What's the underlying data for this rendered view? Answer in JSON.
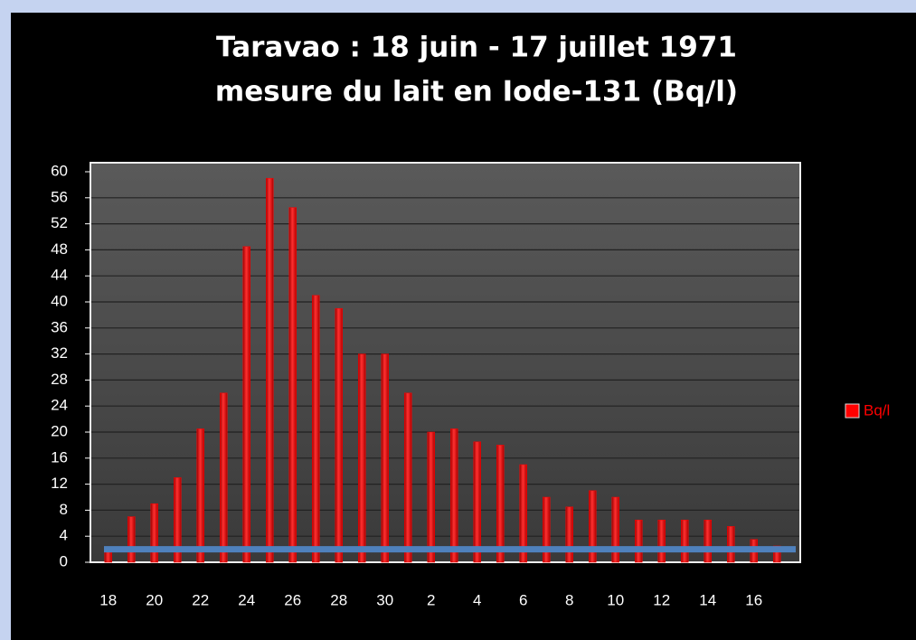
{
  "chart_data": {
    "type": "bar",
    "title": "Taravao : 18 juin - 17 juillet 1971",
    "subtitle": "mesure du lait en Iode-131 (Bq/l)",
    "categories": [
      "18",
      null,
      "20",
      null,
      "22",
      null,
      "24",
      null,
      "26",
      null,
      "28",
      null,
      "30",
      null,
      "2",
      null,
      "4",
      null,
      "6",
      null,
      "8",
      null,
      "10",
      null,
      "12",
      null,
      "14",
      null,
      "16",
      null
    ],
    "series": [
      {
        "name": "Bq/l",
        "color": "#ff0000",
        "values": [
          2,
          7,
          9,
          13,
          20.5,
          26,
          48.5,
          59,
          54.5,
          41,
          39,
          32,
          32,
          26,
          20,
          20.5,
          18.5,
          18,
          15,
          10,
          8.5,
          11,
          10,
          6.5,
          6.5,
          6.5,
          6.5,
          5.5,
          3.5,
          2.5
        ]
      }
    ],
    "reference_line": {
      "value": 2,
      "color": "#4f81bd"
    },
    "ylim": [
      0,
      60
    ],
    "yticks": [
      0,
      4,
      8,
      12,
      16,
      20,
      24,
      28,
      32,
      36,
      40,
      44,
      48,
      52,
      56,
      60
    ],
    "grid": true,
    "legend": "right"
  }
}
